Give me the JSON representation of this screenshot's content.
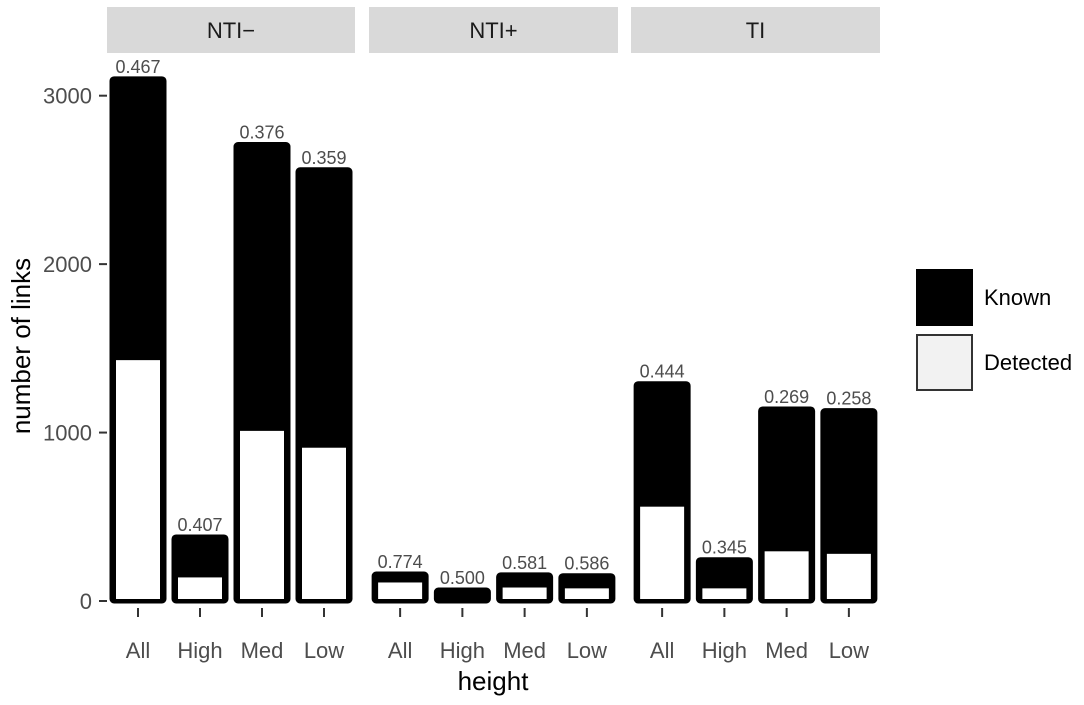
{
  "chart_data": {
    "type": "bar",
    "subtype": "faceted overlaid bar",
    "xlabel": "height",
    "ylabel": "number of links",
    "ylim": [
      0,
      3200
    ],
    "yticks": [
      0,
      1000,
      2000,
      3000
    ],
    "grid": false,
    "legend_position": "right",
    "categories": [
      "All",
      "High",
      "Med",
      "Low"
    ],
    "series": [
      {
        "name": "Known",
        "color": "#000000"
      },
      {
        "name": "Detected",
        "color": "#ffffff"
      }
    ],
    "facets": [
      {
        "name": "NTI−",
        "known": [
          3100,
          380,
          2710,
          2560
        ],
        "detected": [
          1430,
          140,
          1010,
          910
        ],
        "labels": [
          "0.467",
          "0.407",
          "0.376",
          "0.359"
        ]
      },
      {
        "name": "NTI+",
        "known": [
          160,
          65,
          155,
          150
        ],
        "detected": [
          110,
          0,
          80,
          75
        ],
        "labels": [
          "0.774",
          "0.500",
          "0.581",
          "0.586"
        ]
      },
      {
        "name": "TI",
        "known": [
          1290,
          245,
          1140,
          1130
        ],
        "detected": [
          560,
          75,
          295,
          280
        ],
        "labels": [
          "0.444",
          "0.345",
          "0.269",
          "0.258"
        ]
      }
    ]
  }
}
